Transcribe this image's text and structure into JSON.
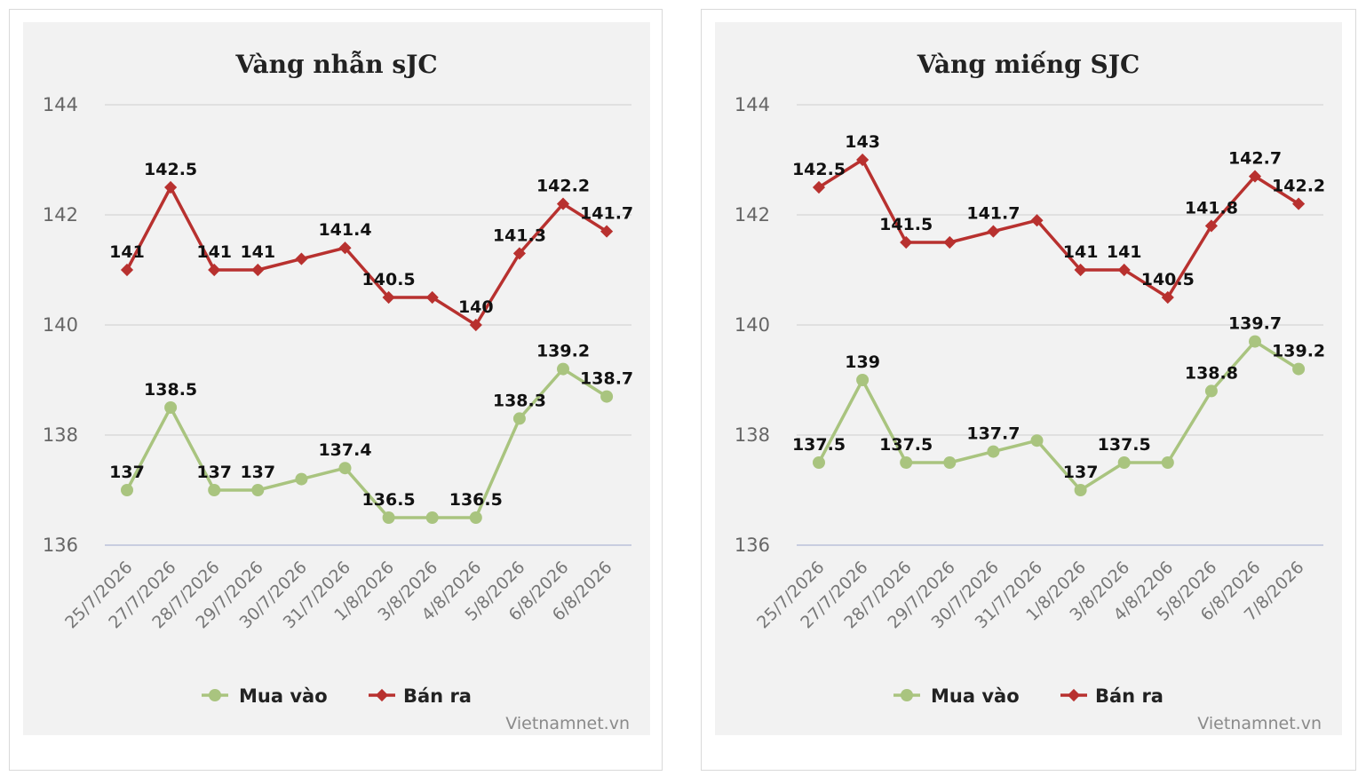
{
  "chart_data": [
    {
      "type": "line",
      "title": "Vàng nhẫn sJC",
      "categories": [
        "25/7/2026",
        "27/7/2026",
        "28/7/2026",
        "29/7/2026",
        "30/7/2026",
        "31/7/2026",
        "1/8/2026",
        "3/8/2026",
        "4/8/2026",
        "5/8/2026",
        "6/8/2026",
        "6/8/2026"
      ],
      "series": [
        {
          "name": "Mua vào",
          "color": "#a9c47f",
          "marker": "circle",
          "values": [
            137,
            138.5,
            137,
            137,
            137.2,
            137.4,
            136.5,
            136.5,
            136.5,
            138.3,
            139.2,
            138.7
          ],
          "labels": [
            "137",
            "138.5",
            "137",
            "137",
            "",
            "137.4",
            "136.5",
            "",
            "136.5",
            "138.3",
            "139.2",
            "138.7"
          ]
        },
        {
          "name": "Bán ra",
          "color": "#b8312f",
          "marker": "diamond",
          "values": [
            141,
            142.5,
            141,
            141,
            141.2,
            141.4,
            140.5,
            140.5,
            140,
            141.3,
            142.2,
            141.7
          ],
          "labels": [
            "141",
            "142.5",
            "141",
            "141",
            "",
            "141.4",
            "140.5",
            "",
            "140",
            "141.3",
            "142.2",
            "141.7"
          ]
        }
      ],
      "yticks": [
        136,
        138,
        140,
        142,
        144
      ],
      "ylim": [
        136,
        144
      ],
      "grid": true,
      "legend_position": "bottom",
      "credit": "Vietnamnet.vn"
    },
    {
      "type": "line",
      "title": "Vàng miếng SJC",
      "categories": [
        "25/7/2026",
        "27/7/2026",
        "28/7/2026",
        "29/7/2026",
        "30/7/2026",
        "31/7/2026",
        "1/8/2026",
        "3/8/2026",
        "4/8/2206",
        "5/8/2026",
        "6/8/2026",
        "7/8/2026"
      ],
      "series": [
        {
          "name": "Mua vào",
          "color": "#a9c47f",
          "marker": "circle",
          "values": [
            137.5,
            139,
            137.5,
            137.5,
            137.7,
            137.9,
            137,
            137.5,
            137.5,
            138.8,
            139.7,
            139.2
          ],
          "labels": [
            "137.5",
            "139",
            "137.5",
            "",
            "137.7",
            "",
            "137",
            "137.5",
            "",
            "138.8",
            "139.7",
            "139.2"
          ]
        },
        {
          "name": "Bán ra",
          "color": "#b8312f",
          "marker": "diamond",
          "values": [
            142.5,
            143,
            141.5,
            141.5,
            141.7,
            141.9,
            141,
            141,
            140.5,
            141.8,
            142.7,
            142.2
          ],
          "labels": [
            "142.5",
            "143",
            "141.5",
            "",
            "141.7",
            "",
            "141",
            "141",
            "140.5",
            "141.8",
            "142.7",
            "142.2"
          ]
        }
      ],
      "yticks": [
        136,
        138,
        140,
        142,
        144
      ],
      "ylim": [
        136,
        144
      ],
      "grid": true,
      "legend_position": "bottom",
      "credit": "Vietnamnet.vn"
    }
  ]
}
